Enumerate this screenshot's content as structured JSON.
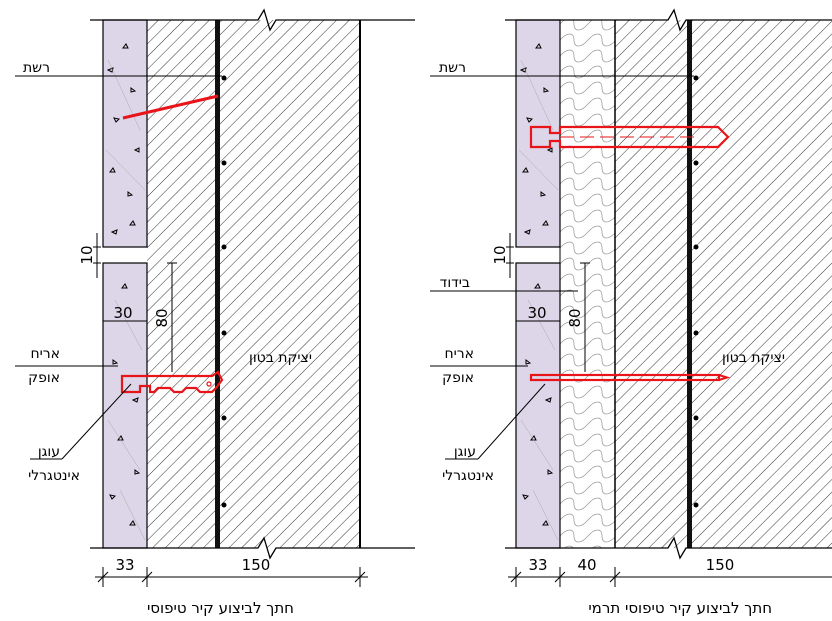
{
  "left_section": {
    "caption": "חתך לביצוע קיר טיפוסי",
    "label_mesh": "רשת",
    "label_tile": [
      "אריח",
      "אופק"
    ],
    "label_anchor": [
      "עוגן",
      "אינטגרלי"
    ],
    "label_concrete": "יציקת בטון",
    "dim_joint": "10",
    "dim_depth": "30",
    "dim_height": "80",
    "dim_tile": "33",
    "dim_wall": "150"
  },
  "right_section": {
    "caption": "חתך לביצוע קיר טיפוסי תרמי",
    "label_mesh": "רשת",
    "label_insulation": "בידוד",
    "label_tile": [
      "אריח",
      "אופק"
    ],
    "label_anchor": [
      "עוגן",
      "אינטגרלי"
    ],
    "label_concrete": "יציקת בטון",
    "dim_joint": "10",
    "dim_depth": "30",
    "dim_height": "80",
    "dim_tile": "33",
    "dim_insulation": "40",
    "dim_wall": "150"
  },
  "colors": {
    "tile_fill": "#dcd6e8",
    "anchor_red": "#e8141a",
    "line": "#000000"
  }
}
